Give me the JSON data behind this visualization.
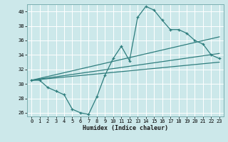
{
  "xlabel": "Humidex (Indice chaleur)",
  "ylabel": "",
  "xlim": [
    -0.5,
    23.5
  ],
  "ylim": [
    25.5,
    41.0
  ],
  "yticks": [
    26,
    28,
    30,
    32,
    34,
    36,
    38,
    40
  ],
  "xticks": [
    0,
    1,
    2,
    3,
    4,
    5,
    6,
    7,
    8,
    9,
    10,
    11,
    12,
    13,
    14,
    15,
    16,
    17,
    18,
    19,
    20,
    21,
    22,
    23
  ],
  "bg_color": "#cce8ea",
  "grid_color": "#b0d0d4",
  "line_color": "#2e7d7d",
  "jagged_x": [
    0,
    1,
    2,
    3,
    4,
    5,
    6,
    7,
    8,
    9,
    10,
    11,
    12,
    13,
    14,
    15,
    16,
    17,
    18,
    19,
    20,
    21,
    22,
    23
  ],
  "jagged_y": [
    30.5,
    30.5,
    29.5,
    29.0,
    28.5,
    26.5,
    26.0,
    25.8,
    28.2,
    31.2,
    33.5,
    35.2,
    33.2,
    39.2,
    40.7,
    40.2,
    38.8,
    37.5,
    37.5,
    37.0,
    36.0,
    35.5,
    34.0,
    33.5
  ],
  "line2_x": [
    0,
    23
  ],
  "line2_y": [
    30.5,
    36.5
  ],
  "line3_x": [
    0,
    23
  ],
  "line3_y": [
    30.5,
    34.2
  ],
  "line4_x": [
    0,
    23
  ],
  "line4_y": [
    30.5,
    33.0
  ]
}
